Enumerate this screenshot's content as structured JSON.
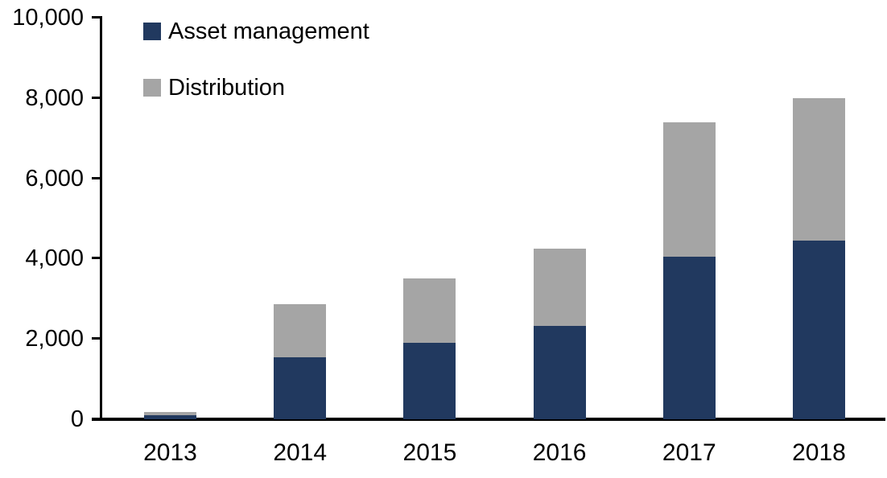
{
  "chart_data": {
    "type": "bar",
    "stacked": true,
    "title": "",
    "xlabel": "",
    "ylabel": "",
    "ylim": [
      0,
      10000
    ],
    "grid": false,
    "legend_position": "top-left",
    "categories": [
      "2013",
      "2014",
      "2015",
      "2016",
      "2017",
      "2018"
    ],
    "series": [
      {
        "name": "Asset management",
        "color": "#21395F",
        "values": [
          100,
          1550,
          1900,
          2330,
          4050,
          4440
        ]
      },
      {
        "name": "Distribution",
        "color": "#A5A5A5",
        "values": [
          80,
          1320,
          1600,
          1920,
          3340,
          3560
        ]
      }
    ],
    "totals": [
      180,
      2870,
      3500,
      4250,
      7390,
      8000
    ],
    "y_axis": {
      "ticks": [
        {
          "label": "0",
          "value": 0
        },
        {
          "label": "2,000",
          "value": 2000
        },
        {
          "label": "4,000",
          "value": 4000
        },
        {
          "label": "6,000",
          "value": 6000
        },
        {
          "label": "8,000",
          "value": 8000
        },
        {
          "label": "10,000",
          "value": 10000
        }
      ]
    },
    "colors": {
      "axis": "#000000",
      "text": "#000000",
      "background": "#FFFFFF"
    }
  }
}
